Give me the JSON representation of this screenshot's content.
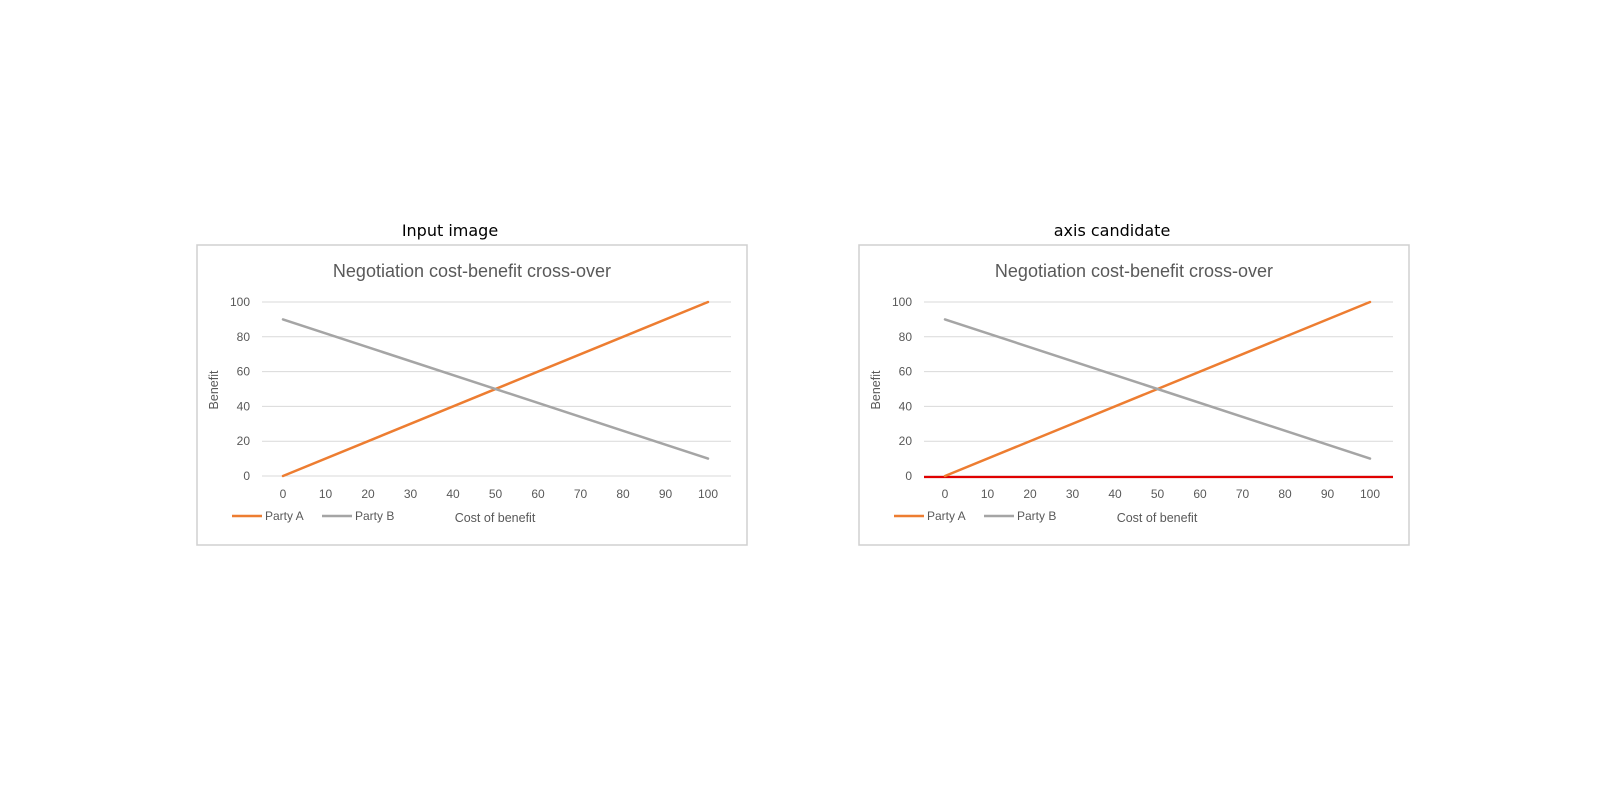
{
  "panels": [
    {
      "label": "Input image",
      "highlight_axis": false
    },
    {
      "label": "axis candidate",
      "highlight_axis": true
    }
  ],
  "colors": {
    "party_a": "#ED7D31",
    "party_b": "#A5A5A5",
    "gridline": "#D9D9D9",
    "frame": "#D0D0D0",
    "axis_highlight": "#E00000"
  },
  "chart_data": [
    {
      "type": "line",
      "title": "Negotiation cost-benefit cross-over",
      "xlabel": "Cost of benefit",
      "ylabel": "Benefit",
      "x_ticks": [
        0,
        10,
        20,
        30,
        40,
        50,
        60,
        70,
        80,
        90,
        100
      ],
      "y_ticks": [
        0,
        20,
        40,
        60,
        80,
        100
      ],
      "xlim": [
        0,
        100
      ],
      "ylim": [
        0,
        100
      ],
      "grid": true,
      "legend_position": "bottom-left",
      "series": [
        {
          "name": "Party A",
          "x": [
            0,
            100
          ],
          "y": [
            0,
            100
          ]
        },
        {
          "name": "Party B",
          "x": [
            0,
            100
          ],
          "y": [
            90,
            10
          ]
        }
      ]
    },
    {
      "type": "line",
      "title": "Negotiation cost-benefit cross-over",
      "xlabel": "Cost of benefit",
      "ylabel": "Benefit",
      "x_ticks": [
        0,
        10,
        20,
        30,
        40,
        50,
        60,
        70,
        80,
        90,
        100
      ],
      "y_ticks": [
        0,
        20,
        40,
        60,
        80,
        100
      ],
      "xlim": [
        0,
        100
      ],
      "ylim": [
        0,
        100
      ],
      "grid": true,
      "legend_position": "bottom-left",
      "series": [
        {
          "name": "Party A",
          "x": [
            0,
            100
          ],
          "y": [
            0,
            100
          ]
        },
        {
          "name": "Party B",
          "x": [
            0,
            100
          ],
          "y": [
            90,
            10
          ]
        }
      ]
    }
  ]
}
